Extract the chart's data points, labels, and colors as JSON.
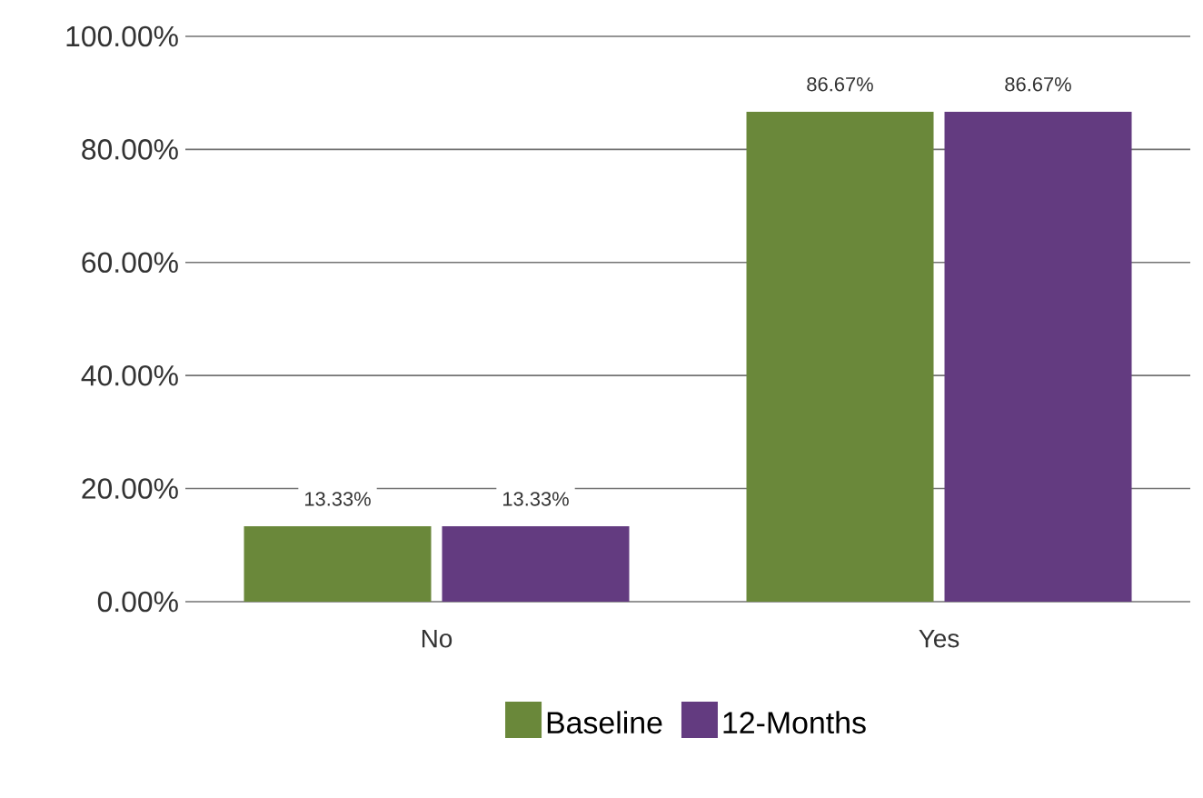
{
  "chart_data": {
    "type": "bar",
    "categories": [
      "No",
      "Yes"
    ],
    "series": [
      {
        "name": "Baseline",
        "color": "#6a883a",
        "values": [
          13.33,
          86.67
        ],
        "value_labels": [
          "13.33%",
          "86.67%"
        ]
      },
      {
        "name": "12-Months",
        "color": "#633b80",
        "values": [
          13.33,
          86.67
        ],
        "value_labels": [
          "13.33%",
          "86.67%"
        ]
      }
    ],
    "ylim": [
      0,
      100
    ],
    "yticks": [
      {
        "value": 0,
        "label": "0.00%"
      },
      {
        "value": 20,
        "label": "20.00%"
      },
      {
        "value": 40,
        "label": "40.00%"
      },
      {
        "value": 60,
        "label": "60.00%"
      },
      {
        "value": 80,
        "label": "80.00%"
      },
      {
        "value": 100,
        "label": "100.00%"
      }
    ],
    "grid": "y",
    "legend": "bottom"
  }
}
